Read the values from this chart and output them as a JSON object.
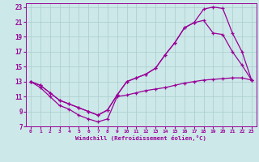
{
  "xlabel": "Windchill (Refroidissement éolien,°C)",
  "bg_color": "#cce8e8",
  "grid_color": "#aacccc",
  "line_color": "#990099",
  "xlim": [
    -0.5,
    23.5
  ],
  "ylim": [
    7,
    23.5
  ],
  "xticks": [
    0,
    1,
    2,
    3,
    4,
    5,
    6,
    7,
    8,
    9,
    10,
    11,
    12,
    13,
    14,
    15,
    16,
    17,
    18,
    19,
    20,
    21,
    22,
    23
  ],
  "yticks": [
    7,
    9,
    11,
    13,
    15,
    17,
    19,
    21,
    23
  ],
  "line1_x": [
    0,
    1,
    2,
    3,
    4,
    5,
    6,
    7,
    8,
    9,
    10,
    11,
    12,
    13,
    14,
    15,
    16,
    17,
    18,
    19,
    20,
    21,
    22,
    23
  ],
  "line1_y": [
    13.0,
    12.5,
    11.5,
    10.5,
    10.0,
    9.5,
    9.0,
    8.5,
    9.2,
    11.2,
    13.0,
    13.5,
    14.0,
    14.8,
    16.6,
    18.2,
    20.2,
    20.9,
    22.7,
    23.0,
    22.8,
    19.5,
    17.0,
    13.2
  ],
  "line2_x": [
    0,
    1,
    2,
    3,
    4,
    5,
    6,
    7,
    8,
    9,
    10,
    11,
    12,
    13,
    14,
    15,
    16,
    17,
    18,
    19,
    20,
    21,
    22,
    23
  ],
  "line2_y": [
    13.0,
    12.5,
    11.5,
    10.5,
    10.0,
    9.5,
    9.0,
    8.5,
    9.2,
    11.2,
    13.0,
    13.5,
    14.0,
    14.8,
    16.6,
    18.2,
    20.2,
    20.9,
    21.2,
    19.5,
    19.3,
    17.0,
    15.2,
    13.2
  ],
  "line3_x": [
    0,
    1,
    2,
    3,
    4,
    5,
    6,
    7,
    8,
    9,
    10,
    11,
    12,
    13,
    14,
    15,
    16,
    17,
    18,
    19,
    20,
    21,
    22,
    23
  ],
  "line3_y": [
    13.0,
    12.2,
    11.0,
    9.8,
    9.3,
    8.5,
    8.0,
    7.6,
    8.0,
    11.0,
    11.2,
    11.5,
    11.8,
    12.0,
    12.2,
    12.5,
    12.8,
    13.0,
    13.2,
    13.3,
    13.4,
    13.5,
    13.5,
    13.2
  ]
}
